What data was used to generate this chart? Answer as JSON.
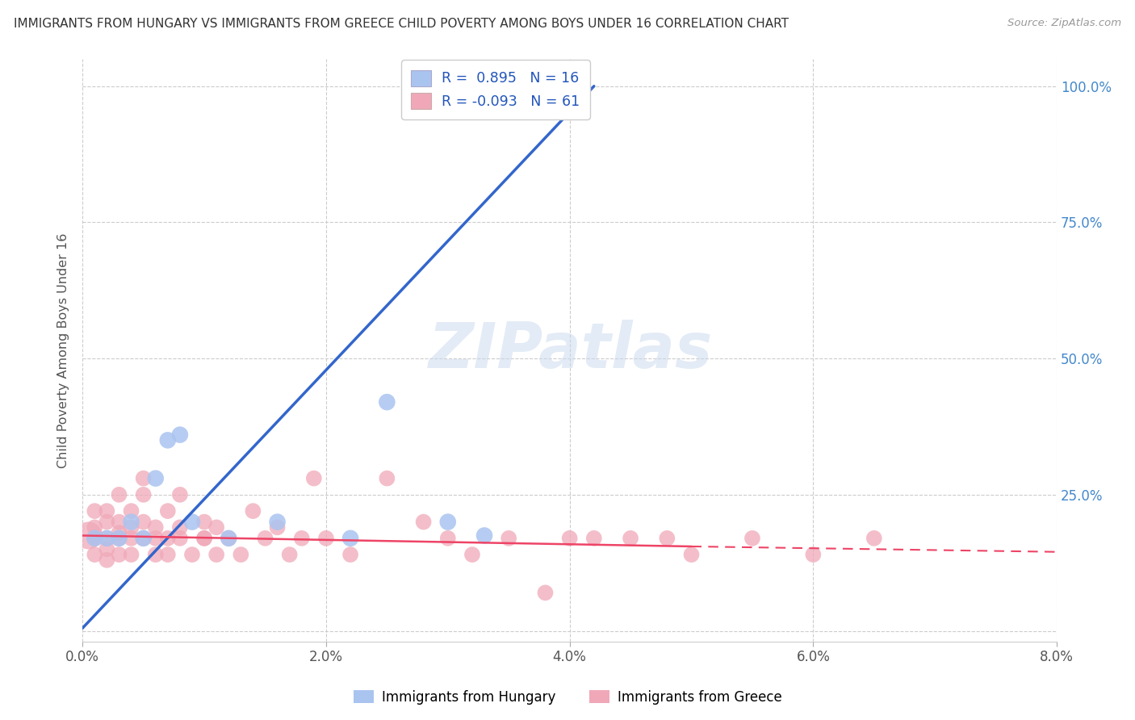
{
  "title": "IMMIGRANTS FROM HUNGARY VS IMMIGRANTS FROM GREECE CHILD POVERTY AMONG BOYS UNDER 16 CORRELATION CHART",
  "source": "Source: ZipAtlas.com",
  "ylabel": "Child Poverty Among Boys Under 16",
  "xlim": [
    0.0,
    0.08
  ],
  "ylim": [
    -0.02,
    1.05
  ],
  "xticks": [
    0.0,
    0.02,
    0.04,
    0.06,
    0.08
  ],
  "xtick_labels": [
    "0.0%",
    "2.0%",
    "4.0%",
    "6.0%",
    "8.0%"
  ],
  "yticks": [
    0.0,
    0.25,
    0.5,
    0.75,
    1.0
  ],
  "ytick_labels_right": [
    "100.0%",
    "75.0%",
    "50.0%",
    "25.0%",
    ""
  ],
  "hungary_R": 0.895,
  "hungary_N": 16,
  "greece_R": -0.093,
  "greece_N": 61,
  "hungary_color": "#aac4f0",
  "greece_color": "#f0a8b8",
  "hungary_line_color": "#3366cc",
  "greece_line_color": "#ee4466",
  "watermark_color": "#c8d8ee",
  "legend_hungary": "Immigrants from Hungary",
  "legend_greece": "Immigrants from Greece",
  "hungary_points": [
    [
      0.001,
      0.17
    ],
    [
      0.002,
      0.17
    ],
    [
      0.003,
      0.17
    ],
    [
      0.004,
      0.2
    ],
    [
      0.005,
      0.17
    ],
    [
      0.006,
      0.28
    ],
    [
      0.007,
      0.35
    ],
    [
      0.008,
      0.36
    ],
    [
      0.009,
      0.2
    ],
    [
      0.012,
      0.17
    ],
    [
      0.016,
      0.2
    ],
    [
      0.022,
      0.17
    ],
    [
      0.025,
      0.42
    ],
    [
      0.03,
      0.2
    ],
    [
      0.04,
      0.97
    ],
    [
      0.033,
      0.175
    ]
  ],
  "hungary_sizes": [
    200,
    180,
    160,
    160,
    160,
    160,
    160,
    160,
    160,
    160,
    160,
    160,
    200,
    160,
    220,
    160
  ],
  "greece_points": [
    [
      0.001,
      0.22
    ],
    [
      0.001,
      0.17
    ],
    [
      0.001,
      0.14
    ],
    [
      0.001,
      0.19
    ],
    [
      0.002,
      0.2
    ],
    [
      0.002,
      0.17
    ],
    [
      0.002,
      0.15
    ],
    [
      0.002,
      0.22
    ],
    [
      0.002,
      0.13
    ],
    [
      0.003,
      0.18
    ],
    [
      0.003,
      0.17
    ],
    [
      0.003,
      0.2
    ],
    [
      0.003,
      0.14
    ],
    [
      0.003,
      0.25
    ],
    [
      0.004,
      0.17
    ],
    [
      0.004,
      0.22
    ],
    [
      0.004,
      0.19
    ],
    [
      0.004,
      0.14
    ],
    [
      0.005,
      0.17
    ],
    [
      0.005,
      0.25
    ],
    [
      0.005,
      0.2
    ],
    [
      0.005,
      0.28
    ],
    [
      0.006,
      0.17
    ],
    [
      0.006,
      0.14
    ],
    [
      0.006,
      0.19
    ],
    [
      0.007,
      0.17
    ],
    [
      0.007,
      0.22
    ],
    [
      0.007,
      0.14
    ],
    [
      0.008,
      0.17
    ],
    [
      0.008,
      0.19
    ],
    [
      0.008,
      0.25
    ],
    [
      0.009,
      0.14
    ],
    [
      0.01,
      0.17
    ],
    [
      0.01,
      0.17
    ],
    [
      0.01,
      0.2
    ],
    [
      0.011,
      0.14
    ],
    [
      0.011,
      0.19
    ],
    [
      0.012,
      0.17
    ],
    [
      0.013,
      0.14
    ],
    [
      0.014,
      0.22
    ],
    [
      0.015,
      0.17
    ],
    [
      0.016,
      0.19
    ],
    [
      0.017,
      0.14
    ],
    [
      0.018,
      0.17
    ],
    [
      0.019,
      0.28
    ],
    [
      0.02,
      0.17
    ],
    [
      0.022,
      0.14
    ],
    [
      0.025,
      0.28
    ],
    [
      0.028,
      0.2
    ],
    [
      0.03,
      0.17
    ],
    [
      0.032,
      0.14
    ],
    [
      0.035,
      0.17
    ],
    [
      0.038,
      0.07
    ],
    [
      0.04,
      0.17
    ],
    [
      0.042,
      0.17
    ],
    [
      0.045,
      0.17
    ],
    [
      0.048,
      0.17
    ],
    [
      0.05,
      0.14
    ],
    [
      0.055,
      0.17
    ],
    [
      0.06,
      0.14
    ],
    [
      0.065,
      0.17
    ]
  ],
  "hungary_line": [
    [
      0.0,
      0.005
    ],
    [
      0.042,
      1.0
    ]
  ],
  "greece_line_solid": [
    [
      0.0,
      0.175
    ],
    [
      0.05,
      0.155
    ]
  ],
  "greece_line_dashed": [
    [
      0.05,
      0.155
    ],
    [
      0.08,
      0.145
    ]
  ]
}
